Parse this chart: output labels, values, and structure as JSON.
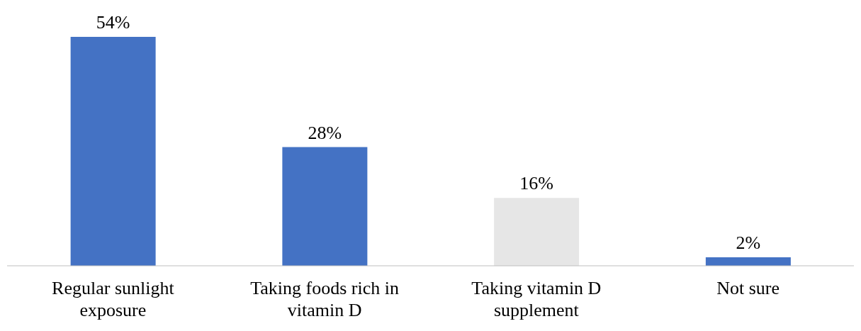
{
  "chart_data": {
    "type": "bar",
    "categories": [
      "Regular sunlight exposure",
      "Taking foods rich in vitamin D",
      "Taking vitamin D supplement",
      "Not sure"
    ],
    "values": [
      54,
      28,
      16,
      2
    ],
    "colors": [
      "#4472c4",
      "#4472c4",
      "#e6e6e6",
      "#4472c4"
    ],
    "value_labels": [
      "54%",
      "28%",
      "16%",
      "2%"
    ],
    "grid": false,
    "legend": false
  }
}
